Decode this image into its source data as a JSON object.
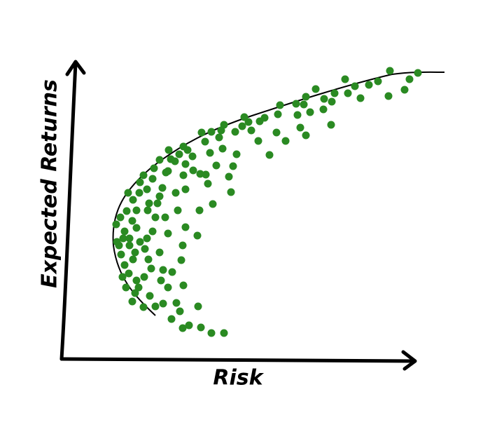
{
  "chart_data": {
    "type": "scatter",
    "x_label": "Risk",
    "y_label": "Expected Returns",
    "color": "#2a8a22",
    "xlim": [
      0,
      520
    ],
    "ylim": [
      0,
      420
    ],
    "x": [
      469,
      509,
      497,
      490,
      467,
      452,
      439,
      427,
      419,
      405,
      409,
      390,
      386,
      375,
      374,
      363,
      349,
      355,
      346,
      335,
      337,
      341,
      349,
      385,
      320,
      312,
      309,
      307,
      297,
      290,
      283,
      281,
      271,
      267,
      261,
      258,
      248,
      250,
      245,
      232,
      228,
      214,
      200,
      205,
      212,
      221,
      239,
      242,
      209,
      216,
      197,
      194,
      230,
      225,
      206,
      198,
      188,
      187,
      180,
      174,
      168,
      153,
      156,
      177,
      162,
      174,
      177,
      163,
      166,
      177,
      149,
      144,
      140,
      148,
      152,
      173,
      171,
      158,
      152,
      174,
      169,
      164,
      145,
      157,
      173,
      182,
      195,
      199,
      214,
      232,
      137,
      134,
      130,
      122,
      119,
      124,
      128,
      118,
      110,
      126,
      134,
      117,
      101,
      107,
      96,
      90,
      85,
      79,
      78,
      90,
      97,
      102,
      107,
      102,
      95,
      112,
      122,
      117,
      130,
      132,
      140,
      152,
      107,
      112,
      87,
      92,
      105,
      140,
      145,
      142,
      93,
      84,
      101,
      123,
      111,
      125,
      82,
      88,
      97,
      105
    ],
    "y": [
      411,
      408,
      399,
      384,
      375,
      396,
      391,
      372,
      389,
      399,
      379,
      379,
      367,
      371,
      356,
      385,
      374,
      352,
      363,
      364,
      348,
      330,
      319,
      334,
      311,
      362,
      349,
      323,
      291,
      344,
      339,
      311,
      326,
      338,
      345,
      332,
      324,
      292,
      275,
      334,
      326,
      324,
      323,
      310,
      294,
      276,
      260,
      238,
      250,
      221,
      212,
      176,
      300,
      316,
      263,
      264,
      269,
      289,
      298,
      303,
      292,
      298,
      285,
      278,
      282,
      262,
      242,
      237,
      212,
      188,
      266,
      244,
      232,
      202,
      179,
      162,
      141,
      124,
      102,
      105,
      68,
      80,
      79,
      57,
      44,
      48,
      75,
      45,
      37,
      37,
      222,
      202,
      182,
      172,
      157,
      142,
      129,
      117,
      102,
      90,
      75,
      74,
      82,
      112,
      122,
      134,
      149,
      167,
      192,
      182,
      162,
      142,
      212,
      227,
      237,
      252,
      242,
      262,
      257,
      272,
      284,
      268,
      187,
      167,
      117,
      102,
      94,
      152,
      127,
      112,
      211,
      202,
      197,
      212,
      237,
      222,
      162,
      172,
      172,
      152
    ]
  }
}
